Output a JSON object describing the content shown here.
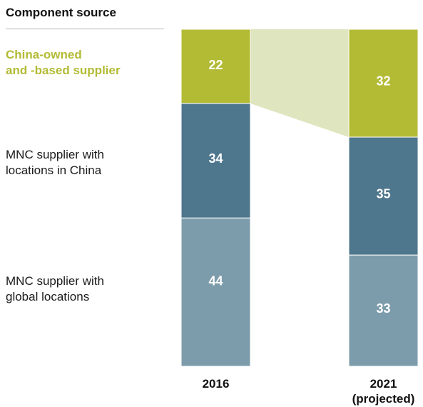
{
  "header": {
    "title": "Component source"
  },
  "legend": [
    "China-owned\nand -based supplier",
    "MNC supplier with\nlocations in China",
    "MNC supplier with\nglobal locations"
  ],
  "chart_data": {
    "type": "bar",
    "stacked": true,
    "categories": [
      "2016",
      "2021"
    ],
    "category_sublabels": [
      "",
      "(projected)"
    ],
    "series": [
      {
        "name": "China-owned and -based supplier",
        "values": [
          22,
          32
        ],
        "color": "#b3bb35"
      },
      {
        "name": "MNC supplier with locations in China",
        "values": [
          34,
          35
        ],
        "color": "#4e768c"
      },
      {
        "name": "MNC supplier with global locations",
        "values": [
          44,
          33
        ],
        "color": "#7d9cab"
      }
    ],
    "connector_color": "#dfe5be",
    "ylim": [
      0,
      100
    ],
    "grid": false
  }
}
